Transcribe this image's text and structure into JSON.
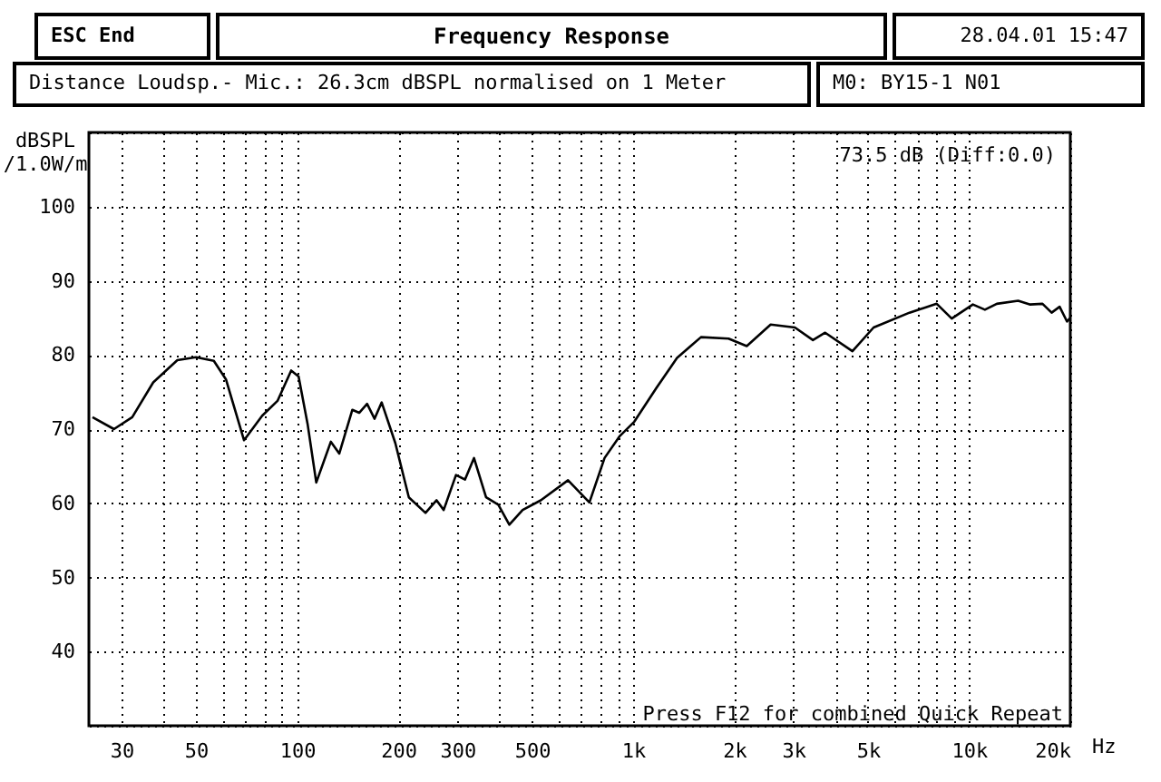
{
  "chart_data": {
    "type": "line",
    "title": "Frequency Response",
    "subtitle": "Distance Loudsp.- Mic.: 26.3cm dBSPL normalised on 1 Meter",
    "ylabel": "dBSPL /1.0W/m",
    "annotations": [
      "ESC End",
      "28.04.01 15:47",
      "M0: BY15-1 N01",
      "73.5 dB (Diff:0.0)",
      "Press F12 for combined Quick Repeat"
    ],
    "log": "x",
    "grid": true,
    "marker": "none",
    "line_style": "solid",
    "xlim": [
      24,
      20000
    ],
    "ylim": [
      30,
      110
    ],
    "xticks": [
      30,
      {
        "value": 40,
        "label": null
      },
      50,
      {
        "value": 60,
        "label": null
      },
      {
        "value": 70,
        "label": null
      },
      {
        "value": 80,
        "label": null
      },
      {
        "value": 90,
        "label": null
      },
      100,
      200,
      300,
      {
        "value": 400,
        "label": null
      },
      500,
      {
        "value": 600,
        "label": null
      },
      {
        "value": 700,
        "label": null
      },
      {
        "value": 800,
        "label": null
      },
      {
        "value": 900,
        "label": null
      },
      {
        "value": 1000,
        "label": "1k"
      },
      {
        "value": 2000,
        "label": "2k"
      },
      {
        "value": 3000,
        "label": "3k"
      },
      {
        "value": 4000,
        "label": null
      },
      {
        "value": 5000,
        "label": "5k"
      },
      {
        "value": 6000,
        "label": null
      },
      {
        "value": 7000,
        "label": null
      },
      {
        "value": 8000,
        "label": null
      },
      {
        "value": 9000,
        "label": null
      },
      {
        "value": 10000,
        "label": "10k"
      },
      {
        "value": 20000,
        "label": "20k"
      }
    ],
    "xlabel": "Hz",
    "yticks": [
      {
        "value": 30,
        "label": null
      },
      40,
      50,
      60,
      70,
      80,
      90,
      100,
      {
        "value": 110,
        "label": null
      }
    ],
    "series": [
      {
        "color": "#000000",
        "x": [
          24.6,
          28.5,
          32.3,
          37.3,
          44,
          50,
          56.5,
          61.4,
          69.5,
          78.7,
          87.4,
          96,
          101,
          107.5,
          114,
          126,
          133.5,
          146,
          153,
          161.5,
          170,
          178.5,
          196,
          215,
          241,
          260,
          273,
          297,
          316,
          336,
          365,
          397,
          428,
          469,
          531,
          640,
          741,
          822,
          910,
          1008,
          1171,
          1351,
          1592,
          1923,
          2178,
          2566,
          3030,
          3428,
          3728,
          4494,
          5195,
          6645,
          8007,
          8875,
          10260,
          11140,
          12090,
          13990,
          15200,
          16530,
          17600,
          18590,
          19560,
          20000
        ],
        "values": [
          71.6,
          70.0,
          71.6,
          76.3,
          79.3,
          79.7,
          79.2,
          76.7,
          68.5,
          71.8,
          73.8,
          77.9,
          77.1,
          70.6,
          62.8,
          68.3,
          66.7,
          72.6,
          72.2,
          73.4,
          71.4,
          73.6,
          68.1,
          60.8,
          58.7,
          60.4,
          59.1,
          63.8,
          63.2,
          66.1,
          60.8,
          59.8,
          57.1,
          59.1,
          60.4,
          63.1,
          60.1,
          66.1,
          69.0,
          71.0,
          75.5,
          79.6,
          82.4,
          82.2,
          81.2,
          84.1,
          83.7,
          82.0,
          83.0,
          80.5,
          83.7,
          85.7,
          86.9,
          84.9,
          86.8,
          86.1,
          86.9,
          87.3,
          86.8,
          86.9,
          85.7,
          86.5,
          84.5,
          85.0
        ]
      }
    ]
  }
}
